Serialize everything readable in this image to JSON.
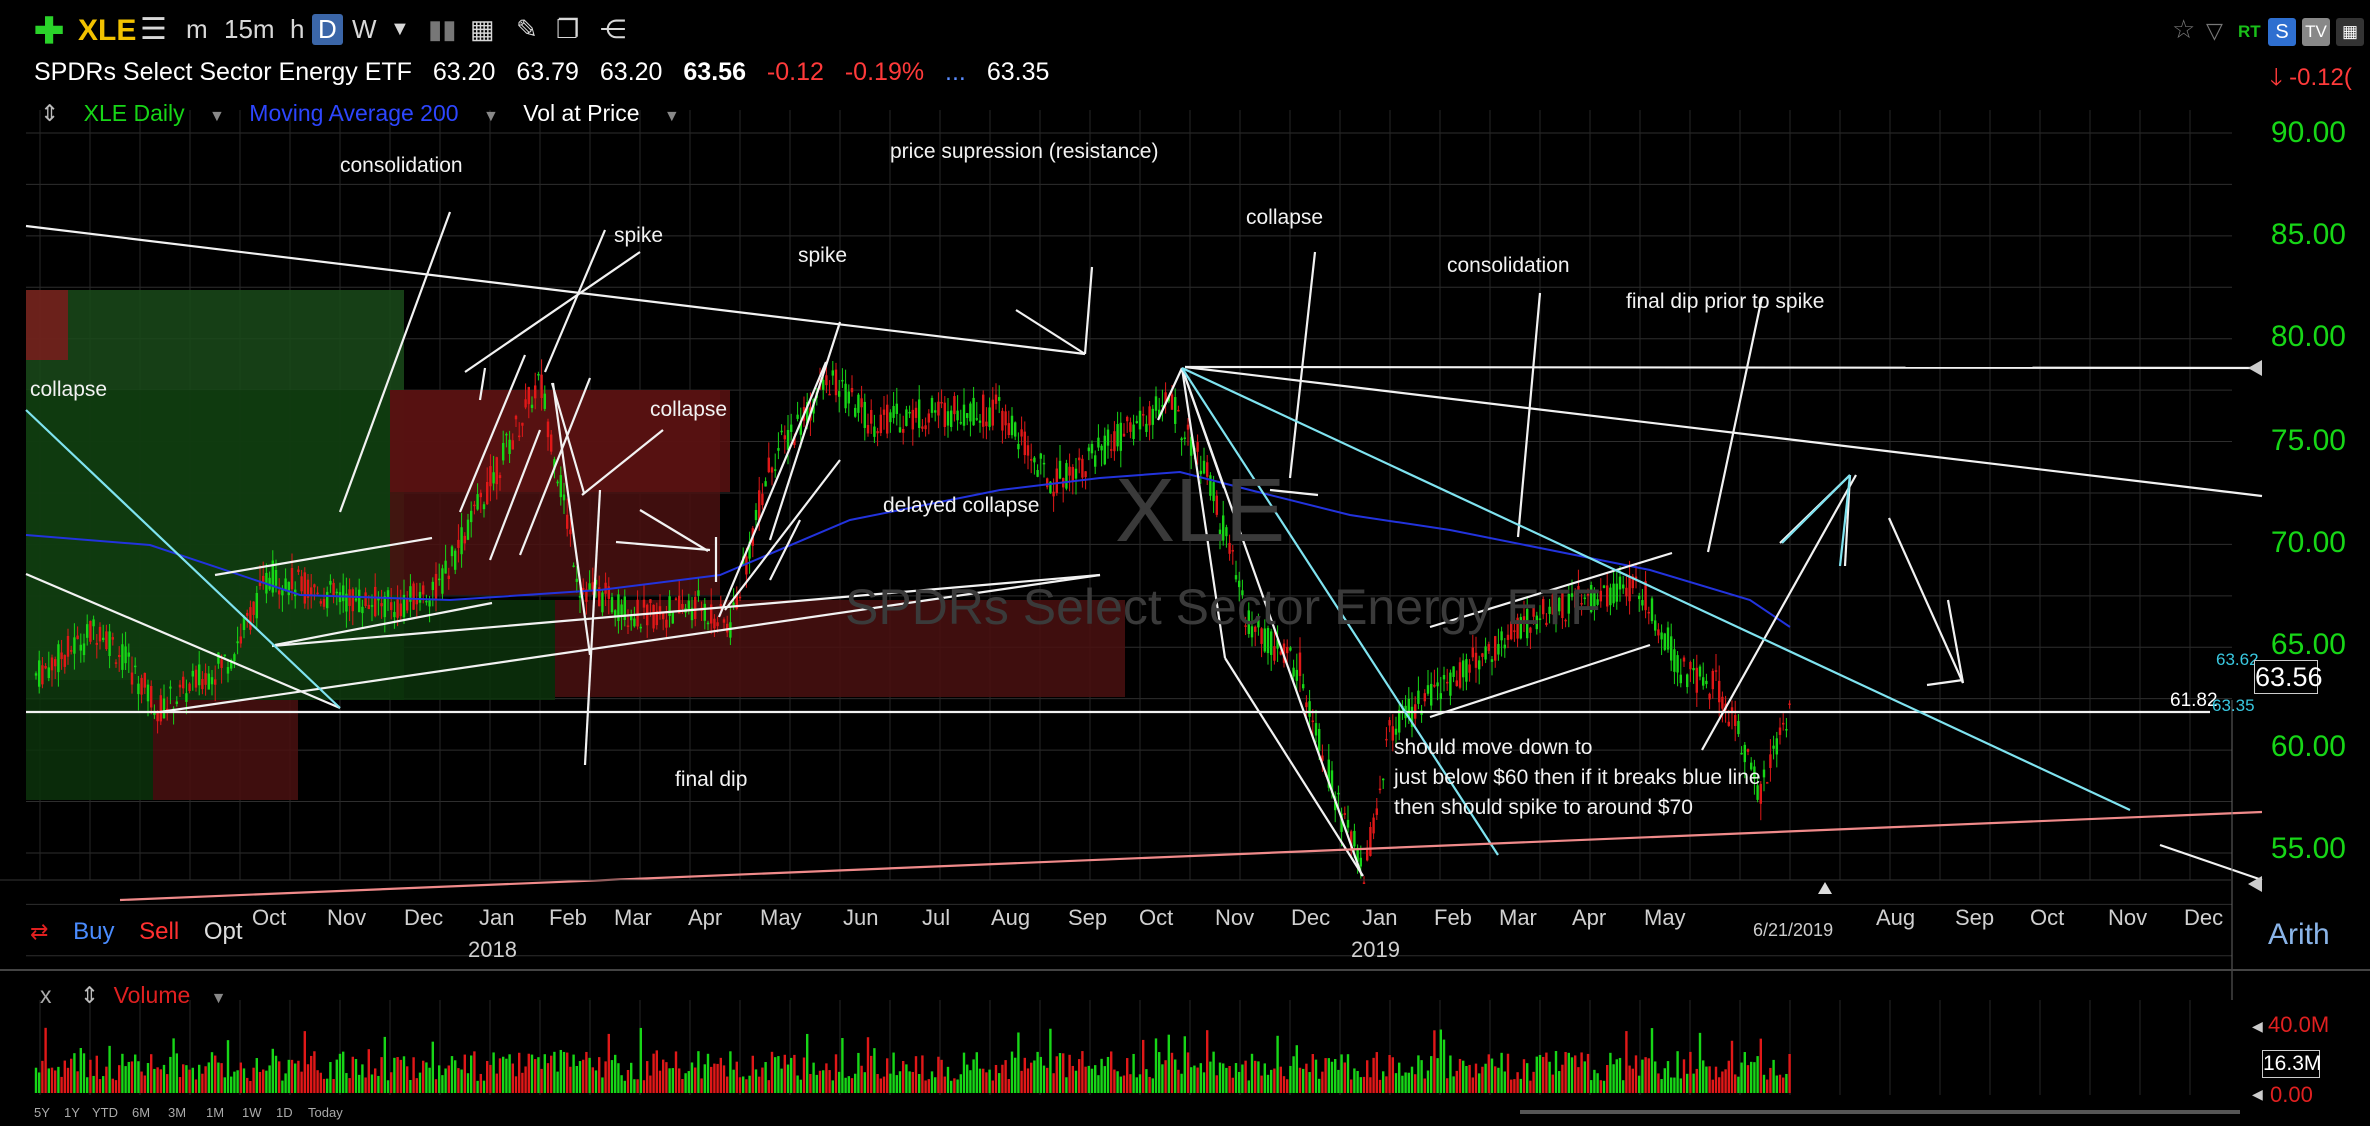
{
  "toolbar": {
    "symbol": "XLE",
    "interval_m": "m",
    "interval_15m": "15m",
    "interval_h": "h",
    "interval_d": "D",
    "interval_w": "W"
  },
  "quote": {
    "name": "SPDRs Select Sector Energy ETF",
    "open": "63.20",
    "high": "63.79",
    "low": "63.20",
    "last": "63.56",
    "change": "-0.12",
    "change_pct": "-0.19%",
    "dots": "...",
    "ma_value": "63.35",
    "right_change": "-0.12("
  },
  "legend": {
    "series": "XLE Daily",
    "ma": "Moving Average 200",
    "vap": "Vol at Price"
  },
  "watermark": {
    "symbol": "XLE",
    "name": "SPDRs Select Sector Energy ETF"
  },
  "annotations": {
    "consolidation1": "consolidation",
    "spike1": "spike",
    "spike2": "spike",
    "collapse_left": "collapse",
    "collapse_feb": "collapse",
    "final_dip": "final dip",
    "price_supression": "price supression (resistance)",
    "delayed_collapse": "delayed collapse",
    "collapse_oct": "collapse",
    "consolidation2": "consolidation",
    "final_dip_prior": "final dip prior to spike",
    "note1": "should move down to",
    "note2": "just below $60 then if it breaks blue line",
    "note3": "then should spike to around $70"
  },
  "axis": {
    "y_labels": [
      "90.00",
      "85.00",
      "80.00",
      "75.00",
      "70.00",
      "65.00",
      "60.00",
      "55.00"
    ],
    "x_labels": [
      "Oct",
      "Nov",
      "Dec",
      "Jan",
      "Feb",
      "Mar",
      "Apr",
      "May",
      "Jun",
      "Jul",
      "Aug",
      "Sep",
      "Oct",
      "Nov",
      "Dec",
      "Jan",
      "Feb",
      "Mar",
      "Apr",
      "May",
      "Aug",
      "Sep",
      "Oct",
      "Nov",
      "Dec"
    ],
    "years": [
      "2018",
      "2019"
    ],
    "date_marker": "6/21/2019",
    "level_6182": "61.82",
    "badge_high": "63.62",
    "badge_ma": "63.35",
    "last_price": "63.56",
    "scale_mode": "Arith"
  },
  "trade": {
    "buy": "Buy",
    "sell": "Sell",
    "opt": "Opt"
  },
  "volume": {
    "close": "x",
    "label": "Volume",
    "top": "40.0M",
    "current": "16.3M",
    "zero": "0.00"
  },
  "ranges": [
    "5Y",
    "1Y",
    "YTD",
    "6M",
    "3M",
    "1M",
    "1W",
    "1D",
    "Today"
  ],
  "colors": {
    "up": "#17d617",
    "down": "#e01818",
    "ma": "#2233dd",
    "trend_cyan": "#7fe3f0",
    "support_pink": "#f08a8a"
  }
}
